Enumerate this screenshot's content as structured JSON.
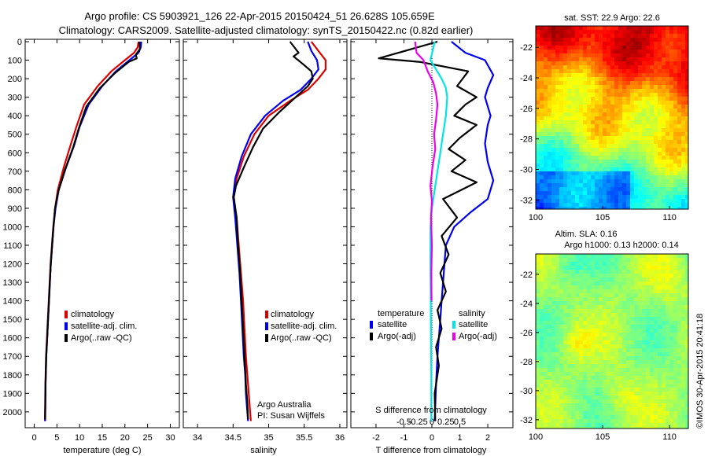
{
  "title_line1": "Argo profile: CS 5903921_126 22-Apr-2015 20150424_51 26.628S 105.659E",
  "title_line2": "Climatology: CARS2009. Satellite-adjusted climatology: synTS_20150422.nc (0.82d earlier)",
  "colors": {
    "climatology": "#dd0000",
    "satellite": "#0000ee",
    "argo": "#000000",
    "satellite_salinity": "#00e5e5",
    "argo_salinity": "#ee00ee"
  },
  "panels": {
    "temperature": {
      "xlabel": "temperature (deg C)",
      "xticks": [
        0,
        5,
        10,
        15,
        20,
        25,
        30
      ],
      "xlim": [
        -2,
        32
      ],
      "yticks": [
        0,
        100,
        200,
        300,
        400,
        500,
        600,
        700,
        800,
        900,
        1000,
        1100,
        1200,
        1300,
        1400,
        1500,
        1600,
        1700,
        1800,
        1900,
        2000
      ],
      "ylim": [
        0,
        2060
      ],
      "legend": [
        "climatology",
        "satellite-adj. clim.",
        "Argo(..raw -QC)"
      ]
    },
    "salinity": {
      "xlabel": "salinity",
      "xticks": [
        34,
        34.5,
        35,
        35.5,
        36
      ],
      "xlim": [
        33.8,
        36.1
      ],
      "legend": [
        "climatology",
        "satellite-adj. clim.",
        "Argo(..raw -QC)"
      ],
      "credit_line1": "Argo Australia",
      "credit_line2": "PI: Susan Wijffels"
    },
    "difference": {
      "xlabel": "T difference from climatology",
      "xlabel_top": "S difference from climatology",
      "t_ticks": [
        -2,
        -1,
        0,
        1,
        2
      ],
      "t_ticklabels": [
        "-2",
        "-1",
        "0",
        "1",
        "2"
      ],
      "s_ticks": [
        -0.5,
        -0.25,
        0,
        0.25,
        0.5
      ],
      "s_ticklabels": [
        "-0.5",
        "-0.25",
        "0",
        "0.25",
        "0.5"
      ],
      "t_xlim": [
        -2.9,
        2.9
      ],
      "legend_temp_header": "temperature",
      "legend_sal_header": "salinity",
      "legend_entries": [
        "satellite",
        "Argo(-adj)",
        "satellite",
        "Argo(-adj)"
      ]
    }
  },
  "map_sst": {
    "title": "sat. SST: 22.9  Argo: 22.6",
    "xticks": [
      100,
      105,
      110
    ],
    "yticks": [
      "-22",
      "-24",
      "-26",
      "-28",
      "-30",
      "-32"
    ]
  },
  "map_sla": {
    "title_line1": "Altim. SLA: 0.16",
    "title_line2": "Argo h1000: 0.13  h2000: 0.14",
    "xticks": [
      100,
      105,
      110
    ],
    "yticks": [
      "-22",
      "-24",
      "-26",
      "-28",
      "-30",
      "-32"
    ]
  },
  "watermark": "©IMOS 30-Apr-2015 20:41:18",
  "chart_data": [
    {
      "type": "line",
      "xlabel": "temperature (deg C)",
      "ylabel": "",
      "xlim": [
        -2,
        32
      ],
      "ylim": [
        2060,
        0
      ],
      "series": [
        {
          "name": "climatology",
          "color_key": "climatology",
          "x": [
            23.0,
            22.8,
            22.0,
            20.0,
            17.0,
            14.0,
            11.0,
            9.3,
            8.0,
            6.5,
            5.2,
            4.6,
            4.2,
            3.9,
            3.6,
            3.4,
            3.2,
            3.0,
            2.8,
            2.6,
            2.45,
            2.35
          ],
          "y": [
            0,
            30,
            60,
            100,
            160,
            240,
            340,
            460,
            560,
            680,
            800,
            900,
            1000,
            1100,
            1200,
            1300,
            1400,
            1500,
            1600,
            1700,
            1850,
            2050
          ]
        },
        {
          "name": "satellite-adj. clim.",
          "color_key": "satellite",
          "x": [
            23.6,
            23.5,
            23.0,
            21.0,
            18.0,
            15.0,
            12.0,
            10.0,
            8.8,
            7.0,
            5.4,
            4.7,
            4.25,
            3.95,
            3.65,
            3.45,
            3.25,
            3.05,
            2.85,
            2.65,
            2.5,
            2.4
          ],
          "y": [
            0,
            30,
            60,
            100,
            160,
            240,
            340,
            460,
            560,
            680,
            800,
            900,
            1000,
            1100,
            1200,
            1300,
            1400,
            1500,
            1600,
            1700,
            1850,
            2050
          ]
        },
        {
          "name": "Argo(..raw -QC)",
          "color_key": "argo",
          "x": [
            23.2,
            23.3,
            22.4,
            22.6,
            20.8,
            17.8,
            14.5,
            11.5,
            9.8,
            8.6,
            6.8,
            5.3,
            4.6,
            4.25,
            3.95,
            3.65,
            3.45,
            3.25,
            3.05,
            2.85,
            2.65,
            2.5,
            2.4
          ],
          "y": [
            0,
            40,
            70,
            90,
            110,
            170,
            250,
            350,
            470,
            570,
            690,
            810,
            900,
            1000,
            1100,
            1200,
            1300,
            1400,
            1500,
            1600,
            1700,
            1850,
            2040
          ]
        }
      ]
    },
    {
      "type": "line",
      "xlabel": "salinity",
      "ylabel": "",
      "xlim": [
        33.8,
        36.1
      ],
      "ylim": [
        2060,
        0
      ],
      "series": [
        {
          "name": "climatology",
          "color_key": "climatology",
          "x": [
            35.6,
            35.7,
            35.8,
            35.8,
            35.7,
            35.55,
            35.3,
            35.0,
            34.8,
            34.65,
            34.55,
            34.5,
            34.55,
            34.58,
            34.61,
            34.64,
            34.66,
            34.68,
            34.7,
            34.72,
            34.73,
            34.74,
            34.75
          ],
          "y": [
            0,
            50,
            100,
            150,
            200,
            260,
            320,
            400,
            500,
            620,
            740,
            840,
            950,
            1100,
            1250,
            1400,
            1550,
            1700,
            1800,
            1900,
            1950,
            2000,
            2050
          ]
        },
        {
          "name": "satellite-adj. clim.",
          "color_key": "satellite",
          "x": [
            35.55,
            35.6,
            35.68,
            35.7,
            35.6,
            35.45,
            35.2,
            34.95,
            34.75,
            34.62,
            34.53,
            34.5,
            34.53,
            34.56,
            34.59,
            34.61,
            34.63,
            34.65,
            34.67,
            34.68,
            34.69,
            34.7,
            34.71
          ],
          "y": [
            0,
            50,
            100,
            150,
            200,
            260,
            320,
            400,
            500,
            620,
            740,
            840,
            950,
            1100,
            1250,
            1400,
            1550,
            1700,
            1800,
            1900,
            1950,
            2000,
            2050
          ]
        },
        {
          "name": "Argo(..raw -QC)",
          "color_key": "argo",
          "x": [
            35.3,
            35.42,
            35.35,
            35.48,
            35.6,
            35.62,
            35.55,
            35.38,
            35.15,
            34.92,
            34.78,
            34.65,
            34.54,
            34.51,
            34.55,
            34.57,
            34.6,
            34.62,
            34.64,
            34.66,
            34.68,
            34.7,
            34.71
          ],
          "y": [
            0,
            60,
            80,
            120,
            160,
            200,
            240,
            300,
            380,
            470,
            570,
            680,
            780,
            840,
            950,
            1100,
            1250,
            1400,
            1550,
            1700,
            1850,
            1950,
            2040
          ]
        }
      ]
    },
    {
      "type": "line",
      "xlabel": "T difference from climatology",
      "xlabel_top": "S difference from climatology",
      "xlim": [
        -2.9,
        2.9
      ],
      "ylim": [
        2060,
        0
      ],
      "series": [
        {
          "name": "temperature satellite",
          "color_key": "satellite",
          "x": [
            0.7,
            1.2,
            1.9,
            2.2,
            2.0,
            1.9,
            2.1,
            2.0,
            1.9,
            2.0,
            2.2,
            2.0,
            1.4,
            0.8,
            0.5,
            0.45,
            0.4,
            0.35,
            0.3,
            0.25,
            0.2,
            0.15,
            0.1
          ],
          "y": [
            0,
            60,
            100,
            180,
            250,
            300,
            400,
            450,
            550,
            650,
            750,
            850,
            920,
            1000,
            1100,
            1200,
            1300,
            1400,
            1500,
            1600,
            1700,
            1850,
            2050
          ]
        },
        {
          "name": "temperature Argo(-adj)",
          "color_key": "argo",
          "x": [
            0.2,
            -1.9,
            -0.4,
            1.3,
            0.9,
            1.6,
            1.2,
            0.8,
            1.6,
            1.0,
            0.6,
            1.2,
            0.7,
            1.6,
            0.4,
            0.9,
            0.35,
            0.6,
            0.3,
            0.5,
            0.2,
            0.35,
            0.15,
            0.25,
            0.1,
            0.12
          ],
          "y": [
            0,
            90,
            110,
            160,
            240,
            300,
            340,
            400,
            450,
            520,
            580,
            640,
            700,
            760,
            850,
            950,
            1050,
            1150,
            1250,
            1350,
            1450,
            1550,
            1650,
            1750,
            1900,
            2050
          ]
        },
        {
          "name": "salinity satellite",
          "color_key": "satellite_salinity",
          "x": [
            0.1,
            -0.05,
            0.15,
            0.35,
            0.5,
            0.55,
            0.5,
            0.4,
            0.3,
            0.2,
            0.1,
            0.0,
            -0.05,
            -0.05,
            -0.04,
            -0.03,
            -0.02,
            -0.02,
            -0.02,
            -0.02
          ],
          "y": [
            0,
            100,
            150,
            200,
            250,
            300,
            400,
            500,
            600,
            700,
            800,
            900,
            1000,
            1200,
            1400,
            1600,
            1800,
            1900,
            2000,
            2050
          ]
        },
        {
          "name": "salinity Argo(-adj)",
          "color_key": "argo_salinity",
          "x": [
            -0.6,
            -0.55,
            -0.3,
            -0.15,
            0.05,
            0.15,
            0.2,
            0.15,
            0.08,
            0.12,
            0.02,
            -0.05,
            0.0,
            -0.03,
            0.0,
            -0.02,
            -0.01
          ],
          "y": [
            0,
            60,
            100,
            160,
            220,
            280,
            340,
            420,
            500,
            580,
            680,
            780,
            860,
            950,
            1100,
            1250,
            1400
          ]
        }
      ]
    }
  ]
}
